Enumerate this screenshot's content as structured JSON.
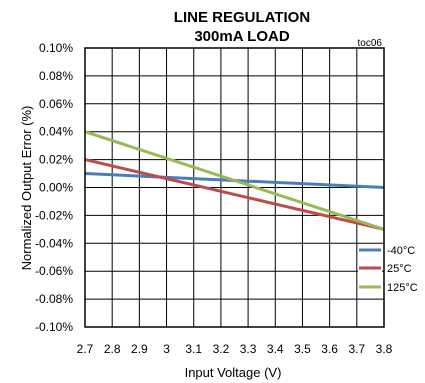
{
  "chart_data": {
    "type": "line",
    "title": "LINE REGULATION",
    "subtitle": "300mA LOAD",
    "tag": "toc06",
    "xlabel": "Input Voltage (V)",
    "ylabel": "Normalized Output Error (%)",
    "xlim": [
      2.7,
      3.8
    ],
    "ylim": [
      -0.1,
      0.1
    ],
    "x_ticks": [
      2.7,
      2.8,
      2.9,
      3.0,
      3.1,
      3.2,
      3.3,
      3.4,
      3.5,
      3.6,
      3.7,
      3.8
    ],
    "x_tick_labels": [
      "2.7",
      "2.8",
      "2.9",
      "3",
      "3.1",
      "3.2",
      "3.3",
      "3.4",
      "3.5",
      "3.6",
      "3.7",
      "3.8"
    ],
    "y_ticks": [
      0.1,
      0.08,
      0.06,
      0.04,
      0.02,
      0.0,
      -0.02,
      -0.04,
      -0.06,
      -0.08,
      -0.1
    ],
    "y_tick_labels": [
      "0.10%",
      "0.08%",
      "0.06%",
      "0.04%",
      "0.02%",
      "0.00%",
      "-0.02%",
      "-0.04%",
      "-0.06%",
      "-0.08%",
      "-0.10%"
    ],
    "grid": true,
    "legend_position": "right-bottom",
    "series": [
      {
        "name": "-40°C",
        "color": "#4a7ebb",
        "x": [
          2.7,
          3.8
        ],
        "y": [
          0.01,
          0.0
        ]
      },
      {
        "name": "25°C",
        "color": "#be4b48",
        "x": [
          2.7,
          3.8
        ],
        "y": [
          0.02,
          -0.03
        ]
      },
      {
        "name": "125°C",
        "color": "#98b954",
        "x": [
          2.7,
          3.8
        ],
        "y": [
          0.04,
          -0.03
        ]
      }
    ]
  }
}
